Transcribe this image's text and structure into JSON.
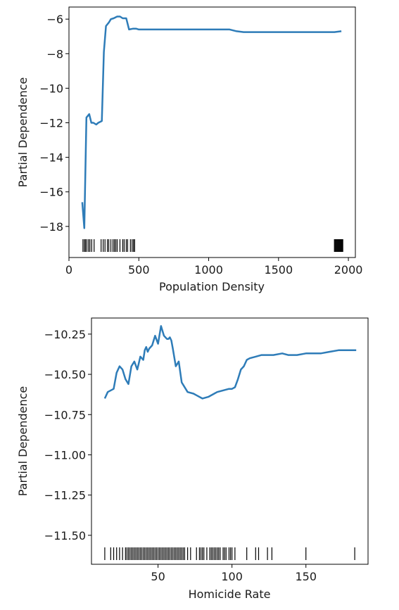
{
  "chart_data": [
    {
      "type": "line",
      "xlabel": "Population Density",
      "ylabel": "Partial Dependence",
      "xlim": [
        0,
        2050
      ],
      "ylim": [
        -19.8,
        -5.3
      ],
      "xticks": [
        0,
        500,
        1000,
        1500,
        2000
      ],
      "yticks": [
        -18,
        -16,
        -14,
        -12,
        -10,
        -8,
        -6
      ],
      "xtick_labels": [
        "0",
        "500",
        "1000",
        "1500",
        "2000"
      ],
      "ytick_labels": [
        "−18",
        "−16",
        "−14",
        "−12",
        "−10",
        "−8",
        "−6"
      ],
      "line_color": "#2e7cb8",
      "series": [
        {
          "x": [
            95,
            110,
            125,
            145,
            160,
            175,
            195,
            210,
            235,
            250,
            265,
            285,
            300,
            320,
            345,
            365,
            385,
            410,
            430,
            460,
            480,
            500,
            600,
            800,
            1000,
            1150,
            1200,
            1250,
            1500,
            1800,
            1900,
            1950
          ],
          "y": [
            -16.6,
            -18.1,
            -11.7,
            -11.5,
            -12.0,
            -12.0,
            -12.1,
            -12.0,
            -11.9,
            -7.9,
            -6.4,
            -6.2,
            -6.0,
            -5.95,
            -5.85,
            -5.85,
            -5.95,
            -5.95,
            -6.6,
            -6.55,
            -6.55,
            -6.6,
            -6.6,
            -6.6,
            -6.6,
            -6.6,
            -6.7,
            -6.75,
            -6.75,
            -6.75,
            -6.75,
            -6.7
          ]
        }
      ],
      "rug_color": "#000000",
      "rug": [
        100,
        110,
        118,
        128,
        140,
        150,
        163,
        180,
        230,
        245,
        258,
        275,
        285,
        300,
        315,
        325,
        335,
        345,
        365,
        385,
        395,
        410,
        420,
        440,
        452,
        462,
        470,
        1900,
        1905,
        1910,
        1915,
        1920,
        1925,
        1930,
        1935,
        1940,
        1945,
        1950,
        1955,
        1960
      ]
    },
    {
      "type": "line",
      "xlabel": "Homicide Rate",
      "ylabel": "Partial Dependence",
      "xlim": [
        5,
        192
      ],
      "ylim": [
        -11.68,
        -10.15
      ],
      "xticks": [
        50,
        100,
        150
      ],
      "yticks": [
        -11.5,
        -11.25,
        -11.0,
        -10.75,
        -10.5,
        -10.25
      ],
      "xtick_labels": [
        "50",
        "100",
        "150"
      ],
      "ytick_labels": [
        "−11.50",
        "−11.25",
        "−11.00",
        "−10.75",
        "−10.50",
        "−10.25"
      ],
      "line_color": "#2e7cb8",
      "series": [
        {
          "x": [
            14,
            16,
            20,
            22,
            24,
            26,
            28,
            30,
            32,
            34,
            36,
            37,
            38,
            39,
            40,
            41,
            42,
            43,
            44,
            46,
            48,
            50,
            52,
            54,
            56,
            57,
            58,
            59,
            60,
            62,
            64,
            66,
            70,
            74,
            76,
            80,
            84,
            88,
            90,
            94,
            98,
            100,
            102,
            104,
            106,
            108,
            110,
            112,
            116,
            120,
            124,
            128,
            134,
            138,
            144,
            150,
            156,
            160,
            166,
            172,
            178,
            184
          ],
          "y": [
            -10.65,
            -10.61,
            -10.59,
            -10.49,
            -10.45,
            -10.47,
            -10.53,
            -10.56,
            -10.45,
            -10.42,
            -10.47,
            -10.43,
            -10.39,
            -10.4,
            -10.41,
            -10.35,
            -10.33,
            -10.36,
            -10.34,
            -10.32,
            -10.26,
            -10.31,
            -10.2,
            -10.26,
            -10.28,
            -10.28,
            -10.27,
            -10.29,
            -10.34,
            -10.45,
            -10.42,
            -10.55,
            -10.61,
            -10.62,
            -10.63,
            -10.65,
            -10.64,
            -10.62,
            -10.61,
            -10.6,
            -10.59,
            -10.59,
            -10.58,
            -10.53,
            -10.47,
            -10.45,
            -10.41,
            -10.4,
            -10.39,
            -10.38,
            -10.38,
            -10.38,
            -10.37,
            -10.38,
            -10.38,
            -10.37,
            -10.37,
            -10.37,
            -10.36,
            -10.35,
            -10.35,
            -10.35
          ]
        }
      ],
      "rug_color": "#000000",
      "rug": [
        14,
        18,
        20,
        22,
        24,
        26,
        28,
        29,
        30,
        31,
        32,
        33,
        34,
        35,
        36,
        37,
        38,
        39,
        40,
        41,
        42,
        43,
        44,
        45,
        46,
        47,
        48,
        49,
        50,
        51,
        52,
        53,
        54,
        55,
        56,
        57,
        58,
        59,
        60,
        61,
        62,
        63,
        64,
        65,
        66,
        67,
        68,
        70,
        72,
        76,
        78,
        79,
        80,
        81,
        83,
        85,
        86,
        87,
        88,
        89,
        90,
        91,
        92,
        94,
        95,
        96,
        98,
        99,
        100,
        102,
        110,
        116,
        118,
        124,
        127,
        150,
        183
      ]
    }
  ]
}
